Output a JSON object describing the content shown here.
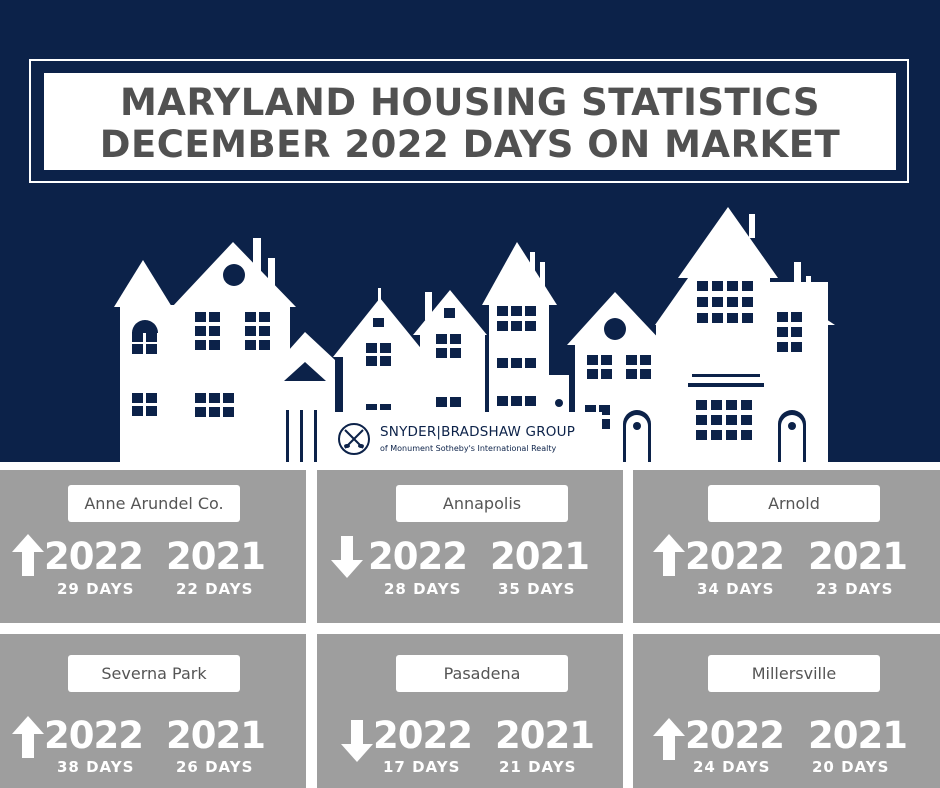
{
  "title": {
    "line1": "MARYLAND HOUSING STATISTICS",
    "line2": "DECEMBER 2022 DAYS ON MARKET"
  },
  "logo": {
    "name": "SNYDER|BRADSHAW GROUP",
    "subtitle": "of Monument Sotheby's International Realty"
  },
  "colors": {
    "navy": "#0c2249",
    "card_gray": "#9e9e9e",
    "title_text": "#515151"
  },
  "cards": [
    {
      "location": "Anne Arundel Co.",
      "trend": "up",
      "trend_icon": "arrow-up-icon",
      "year_current": "2022",
      "days_current": "29 DAYS",
      "year_previous": "2021",
      "days_previous": "22 DAYS"
    },
    {
      "location": "Annapolis",
      "trend": "down",
      "trend_icon": "arrow-down-icon",
      "year_current": "2022",
      "days_current": "28 DAYS",
      "year_previous": "2021",
      "days_previous": "35 DAYS"
    },
    {
      "location": "Arnold",
      "trend": "up",
      "trend_icon": "arrow-up-icon",
      "year_current": "2022",
      "days_current": "34 DAYS",
      "year_previous": "2021",
      "days_previous": "23 DAYS"
    },
    {
      "location": "Severna Park",
      "trend": "up",
      "trend_icon": "arrow-up-icon",
      "year_current": "2022",
      "days_current": "38 DAYS",
      "year_previous": "2021",
      "days_previous": "26 DAYS"
    },
    {
      "location": "Pasadena",
      "trend": "down",
      "trend_icon": "arrow-down-icon",
      "year_current": "2022",
      "days_current": "17 DAYS",
      "year_previous": "2021",
      "days_previous": "21 DAYS"
    },
    {
      "location": "Millersville",
      "trend": "up",
      "trend_icon": "arrow-up-icon",
      "year_current": "2022",
      "days_current": "24 DAYS",
      "year_previous": "2021",
      "days_previous": "20 DAYS"
    }
  ]
}
